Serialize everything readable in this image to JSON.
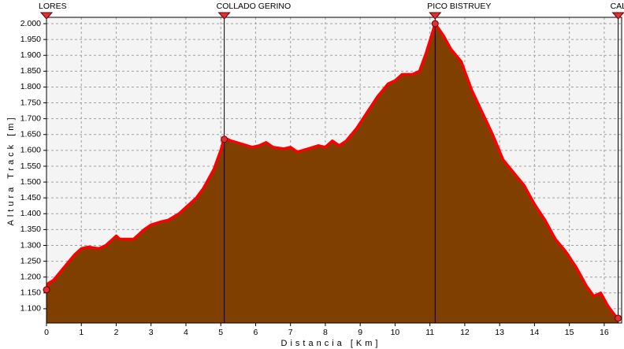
{
  "chart_data": {
    "type": "area",
    "x_label": "Distancia [Km]",
    "y_label": "Altura Track [m]",
    "x": [
      0,
      0.05,
      0.2,
      0.5,
      0.8,
      1.0,
      1.2,
      1.5,
      1.7,
      1.9,
      2.0,
      2.1,
      2.5,
      2.8,
      3.0,
      3.3,
      3.5,
      3.8,
      4.0,
      4.3,
      4.5,
      4.8,
      5.0,
      5.1,
      5.3,
      5.6,
      5.9,
      6.1,
      6.3,
      6.5,
      6.8,
      7.0,
      7.2,
      7.5,
      7.8,
      8.0,
      8.2,
      8.4,
      8.6,
      8.9,
      9.2,
      9.5,
      9.8,
      10.0,
      10.2,
      10.5,
      10.7,
      10.9,
      11.15,
      11.4,
      11.6,
      11.9,
      12.2,
      12.5,
      12.8,
      13.1,
      13.4,
      13.7,
      14.0,
      14.3,
      14.6,
      14.9,
      15.2,
      15.5,
      15.7,
      15.9,
      16.1,
      16.3,
      16.4
    ],
    "values": [
      1160,
      1180,
      1190,
      1230,
      1270,
      1290,
      1295,
      1290,
      1300,
      1320,
      1330,
      1320,
      1320,
      1350,
      1365,
      1375,
      1380,
      1400,
      1420,
      1450,
      1480,
      1540,
      1600,
      1640,
      1630,
      1620,
      1610,
      1615,
      1625,
      1610,
      1605,
      1610,
      1595,
      1605,
      1615,
      1610,
      1630,
      1615,
      1630,
      1670,
      1720,
      1770,
      1810,
      1820,
      1840,
      1840,
      1850,
      1910,
      2000,
      1960,
      1920,
      1880,
      1790,
      1720,
      1650,
      1570,
      1530,
      1490,
      1430,
      1380,
      1320,
      1280,
      1230,
      1170,
      1140,
      1150,
      1110,
      1080,
      1070
    ],
    "color": "#7f3f00",
    "line_color": "#ff0000",
    "xlim": [
      0,
      16.5
    ],
    "ylim": [
      1055,
      2020
    ],
    "xticks": [
      0,
      1,
      2,
      3,
      4,
      5,
      6,
      7,
      8,
      9,
      10,
      11,
      12,
      13,
      14,
      15,
      16
    ],
    "yticks": [
      {
        "value": 1100,
        "label": "1.100"
      },
      {
        "value": 1150,
        "label": "1.150"
      },
      {
        "value": 1200,
        "label": "1.200"
      },
      {
        "value": 1250,
        "label": "1.250"
      },
      {
        "value": 1300,
        "label": "1.300"
      },
      {
        "value": 1350,
        "label": "1.350"
      },
      {
        "value": 1400,
        "label": "1.400"
      },
      {
        "value": 1450,
        "label": "1.450"
      },
      {
        "value": 1500,
        "label": "1.500"
      },
      {
        "value": 1550,
        "label": "1.550"
      },
      {
        "value": 1600,
        "label": "1.600"
      },
      {
        "value": 1650,
        "label": "1.650"
      },
      {
        "value": 1700,
        "label": "1.700"
      },
      {
        "value": 1750,
        "label": "1.750"
      },
      {
        "value": 1800,
        "label": "1.800"
      },
      {
        "value": 1850,
        "label": "1.850"
      },
      {
        "value": 1900,
        "label": "1.900"
      },
      {
        "value": 1950,
        "label": "1.950"
      },
      {
        "value": 2000,
        "label": "2.000"
      }
    ],
    "grid": true,
    "waypoints": [
      {
        "name": "LORES",
        "x": 0,
        "y": 1160
      },
      {
        "name": "COLLADO GERINO",
        "x": 5.1,
        "y": 1635
      },
      {
        "name": "PICO BISTRUEY",
        "x": 11.15,
        "y": 2000
      },
      {
        "name": "CAL",
        "x": 16.4,
        "y": 1070
      }
    ]
  }
}
